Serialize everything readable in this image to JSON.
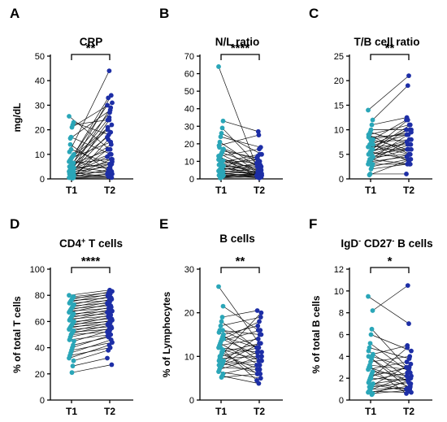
{
  "colors": {
    "t1": "#2aa6b8",
    "t2": "#1d2ea6",
    "line": "#111111"
  },
  "chart_data": [
    {
      "type": "scatter",
      "subtype": "paired-dot",
      "panel": "A",
      "title": "CRP",
      "xlabel": "",
      "ylabel": "mg/dL",
      "categories": [
        "T1",
        "T2"
      ],
      "ylim": [
        0,
        50
      ],
      "yticks": [
        0,
        10,
        20,
        30,
        40,
        50
      ],
      "significance": "**",
      "pairs": [
        [
          25.5,
          12
        ],
        [
          23,
          18
        ],
        [
          22,
          24
        ],
        [
          21,
          31
        ],
        [
          17,
          10
        ],
        [
          16.5,
          28
        ],
        [
          11,
          44
        ],
        [
          10,
          33
        ],
        [
          9.5,
          30
        ],
        [
          9,
          22
        ],
        [
          8.5,
          15
        ],
        [
          8,
          27
        ],
        [
          7.5,
          4
        ],
        [
          7,
          20
        ],
        [
          6.5,
          8
        ],
        [
          6,
          34
        ],
        [
          6,
          12
        ],
        [
          5.5,
          25
        ],
        [
          5,
          3
        ],
        [
          5,
          17
        ],
        [
          4.5,
          6
        ],
        [
          4.5,
          29
        ],
        [
          4,
          10
        ],
        [
          4,
          2
        ],
        [
          3.5,
          21
        ],
        [
          3.5,
          7
        ],
        [
          3,
          14
        ],
        [
          3,
          5
        ],
        [
          2.5,
          24
        ],
        [
          2.5,
          1
        ],
        [
          2,
          9
        ],
        [
          2,
          3
        ],
        [
          2,
          19
        ],
        [
          1.5,
          6
        ],
        [
          1.5,
          1
        ],
        [
          1,
          12
        ],
        [
          1,
          2
        ],
        [
          1,
          8
        ],
        [
          0.5,
          4
        ],
        [
          0.5,
          1
        ],
        [
          0.5,
          16
        ],
        [
          0.3,
          2
        ],
        [
          0.3,
          0.5
        ],
        [
          12,
          6
        ],
        [
          14,
          3
        ]
      ]
    },
    {
      "type": "scatter",
      "subtype": "paired-dot",
      "panel": "B",
      "title": "N/L ratio",
      "xlabel": "",
      "ylabel": "",
      "categories": [
        "T1",
        "T2"
      ],
      "ylim": [
        0,
        70
      ],
      "yticks": [
        0,
        10,
        20,
        30,
        40,
        50,
        60,
        70
      ],
      "significance": "****",
      "pairs": [
        [
          64,
          3
        ],
        [
          33,
          27
        ],
        [
          29,
          8
        ],
        [
          26,
          14
        ],
        [
          24,
          18
        ],
        [
          21,
          6
        ],
        [
          19,
          25
        ],
        [
          17,
          4
        ],
        [
          16,
          12
        ],
        [
          15,
          7
        ],
        [
          14,
          3
        ],
        [
          13,
          17
        ],
        [
          12,
          5
        ],
        [
          11,
          9
        ],
        [
          10.5,
          2
        ],
        [
          10,
          6
        ],
        [
          9.5,
          14
        ],
        [
          9,
          3
        ],
        [
          8.5,
          11
        ],
        [
          8,
          2
        ],
        [
          7.5,
          5
        ],
        [
          7,
          8
        ],
        [
          6.5,
          1.5
        ],
        [
          6,
          4
        ],
        [
          5.5,
          7
        ],
        [
          5,
          2
        ],
        [
          4.5,
          3
        ],
        [
          4,
          6
        ],
        [
          3.5,
          1
        ],
        [
          3,
          4
        ],
        [
          3,
          2
        ],
        [
          2.5,
          1
        ],
        [
          2,
          3
        ],
        [
          2,
          0.5
        ],
        [
          1.5,
          2
        ],
        [
          1,
          1
        ],
        [
          1,
          3
        ],
        [
          0.5,
          1.5
        ],
        [
          18,
          10
        ],
        [
          13,
          1
        ],
        [
          7,
          13
        ],
        [
          5,
          9
        ]
      ]
    },
    {
      "type": "scatter",
      "subtype": "paired-dot",
      "panel": "C",
      "title": "T/B cell ratio",
      "xlabel": "",
      "ylabel": "",
      "categories": [
        "T1",
        "T2"
      ],
      "ylim": [
        0,
        25
      ],
      "yticks": [
        0,
        5,
        10,
        15,
        20,
        25
      ],
      "significance": "**",
      "pairs": [
        [
          14,
          21
        ],
        [
          12,
          19
        ],
        [
          11,
          12.5
        ],
        [
          10,
          10
        ],
        [
          9.5,
          7
        ],
        [
          9,
          11
        ],
        [
          8.5,
          9
        ],
        [
          8,
          6
        ],
        [
          8,
          12
        ],
        [
          7.5,
          8
        ],
        [
          7,
          10
        ],
        [
          7,
          5
        ],
        [
          6.5,
          7
        ],
        [
          6.5,
          9
        ],
        [
          6,
          6
        ],
        [
          6,
          11
        ],
        [
          5.5,
          8
        ],
        [
          5.5,
          4
        ],
        [
          5,
          6
        ],
        [
          5,
          10
        ],
        [
          4.5,
          7
        ],
        [
          4.5,
          5
        ],
        [
          4,
          6
        ],
        [
          4,
          9
        ],
        [
          3.5,
          4.5
        ],
        [
          3.5,
          8
        ],
        [
          3,
          5
        ],
        [
          3,
          3
        ],
        [
          2.5,
          4
        ],
        [
          2,
          3
        ],
        [
          1,
          1
        ],
        [
          0.8,
          4
        ],
        [
          9,
          5
        ],
        [
          7,
          3.5
        ],
        [
          6,
          12
        ],
        [
          5,
          7.5
        ],
        [
          8,
          9.5
        ],
        [
          4,
          3
        ]
      ]
    },
    {
      "type": "scatter",
      "subtype": "paired-dot",
      "panel": "D",
      "title": "CD4+ T cells",
      "title_main": "CD4",
      "title_sup": "+",
      "title_rest": " T cells",
      "xlabel": "",
      "ylabel": "% of total T cells",
      "categories": [
        "T1",
        "T2"
      ],
      "ylim": [
        0,
        100
      ],
      "yticks": [
        0,
        20,
        40,
        60,
        80,
        100
      ],
      "significance": "****",
      "pairs": [
        [
          80,
          84
        ],
        [
          79,
          82
        ],
        [
          78,
          80
        ],
        [
          77,
          83
        ],
        [
          76,
          78
        ],
        [
          75,
          81
        ],
        [
          74,
          76
        ],
        [
          73,
          79
        ],
        [
          72,
          74
        ],
        [
          71,
          77
        ],
        [
          70,
          72
        ],
        [
          69,
          75
        ],
        [
          68,
          70
        ],
        [
          67,
          73
        ],
        [
          66,
          68
        ],
        [
          65,
          71
        ],
        [
          64,
          66
        ],
        [
          63,
          69
        ],
        [
          62,
          64
        ],
        [
          61,
          67
        ],
        [
          60,
          62
        ],
        [
          59,
          65
        ],
        [
          58,
          60
        ],
        [
          57,
          63
        ],
        [
          56,
          58
        ],
        [
          55,
          61
        ],
        [
          54,
          56
        ],
        [
          53,
          59
        ],
        [
          52,
          54
        ],
        [
          51,
          57
        ],
        [
          50,
          52
        ],
        [
          48,
          55
        ],
        [
          46,
          50
        ],
        [
          45,
          53
        ],
        [
          42,
          48
        ],
        [
          40,
          49
        ],
        [
          38,
          44
        ],
        [
          36,
          46
        ],
        [
          34,
          40
        ],
        [
          32,
          42
        ],
        [
          30,
          38
        ],
        [
          26,
          32
        ],
        [
          21,
          27
        ]
      ]
    },
    {
      "type": "scatter",
      "subtype": "paired-dot",
      "panel": "E",
      "title": "B cells",
      "xlabel": "",
      "ylabel": "% of Lymphocytes",
      "categories": [
        "T1",
        "T2"
      ],
      "ylim": [
        0,
        30
      ],
      "yticks": [
        0,
        10,
        20,
        30
      ],
      "significance": "**",
      "pairs": [
        [
          26,
          13
        ],
        [
          21.5,
          16
        ],
        [
          19,
          20.5
        ],
        [
          18,
          11
        ],
        [
          17,
          19
        ],
        [
          16,
          15
        ],
        [
          15.5,
          9
        ],
        [
          15,
          17
        ],
        [
          14.5,
          12
        ],
        [
          14,
          10
        ],
        [
          13.5,
          16
        ],
        [
          13,
          8
        ],
        [
          12.5,
          14
        ],
        [
          12,
          11
        ],
        [
          11.5,
          9
        ],
        [
          11,
          13
        ],
        [
          10.5,
          7
        ],
        [
          10,
          12
        ],
        [
          9.5,
          10
        ],
        [
          9,
          8
        ],
        [
          9,
          15
        ],
        [
          8.5,
          6
        ],
        [
          8,
          9
        ],
        [
          8,
          11
        ],
        [
          7.5,
          7
        ],
        [
          7,
          10
        ],
        [
          6.5,
          5
        ],
        [
          6,
          8
        ],
        [
          5.5,
          3.8
        ],
        [
          5.2,
          6
        ],
        [
          12,
          4.5
        ],
        [
          10,
          20
        ],
        [
          8,
          13
        ],
        [
          14,
          18
        ],
        [
          16,
          12
        ],
        [
          11,
          6
        ]
      ]
    },
    {
      "type": "scatter",
      "subtype": "paired-dot",
      "panel": "F",
      "title": "IgD- CD27- B cells",
      "title_parts": [
        "IgD",
        "-",
        " CD27",
        "-",
        " B cells"
      ],
      "xlabel": "",
      "ylabel": "% of total B cells",
      "categories": [
        "T1",
        "T2"
      ],
      "ylim": [
        0,
        12
      ],
      "yticks": [
        0,
        2,
        4,
        6,
        8,
        10,
        12
      ],
      "significance": "*",
      "pairs": [
        [
          9.5,
          7
        ],
        [
          8.2,
          10.5
        ],
        [
          6.5,
          3
        ],
        [
          6,
          4.5
        ],
        [
          5.2,
          2.5
        ],
        [
          4.8,
          3.8
        ],
        [
          4.5,
          2
        ],
        [
          4.2,
          5
        ],
        [
          4,
          3
        ],
        [
          3.8,
          1.5
        ],
        [
          3.5,
          4
        ],
        [
          3.2,
          2.8
        ],
        [
          3,
          1.8
        ],
        [
          2.8,
          3.5
        ],
        [
          2.6,
          2.2
        ],
        [
          2.4,
          1.2
        ],
        [
          2.2,
          3
        ],
        [
          2,
          1.8
        ],
        [
          1.8,
          2.5
        ],
        [
          1.6,
          1
        ],
        [
          1.5,
          2
        ],
        [
          1.4,
          0.8
        ],
        [
          1.2,
          1.6
        ],
        [
          1,
          1.1
        ],
        [
          0.9,
          2.2
        ],
        [
          0.8,
          0.7
        ],
        [
          0.7,
          1.3
        ],
        [
          0.6,
          0.9
        ],
        [
          0.5,
          1.8
        ],
        [
          2,
          4.8
        ],
        [
          3,
          0.6
        ],
        [
          1.2,
          3.3
        ],
        [
          4,
          1
        ]
      ]
    }
  ]
}
